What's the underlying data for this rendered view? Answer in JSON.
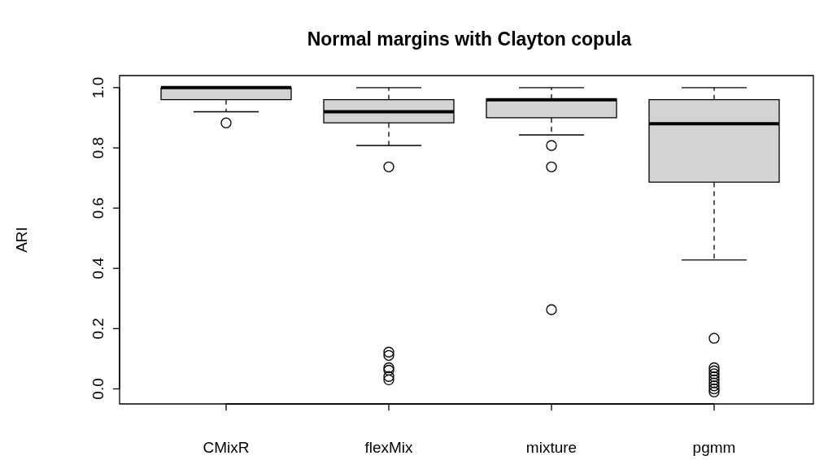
{
  "chart_data": {
    "type": "box",
    "title": "Normal margins with Clayton copula",
    "ylabel": "ARI",
    "categories": [
      "CMixR",
      "flexMix",
      "mixture",
      "pgmm"
    ],
    "color": "#d3d3d3",
    "boxes": [
      {
        "low": 0.92,
        "q1": 0.96,
        "median": 1.0,
        "q3": 1.0,
        "high": 1.0,
        "outliers": [
          0.883
        ]
      },
      {
        "low": 0.808,
        "q1": 0.883,
        "median": 0.92,
        "q3": 0.96,
        "high": 1.0,
        "outliers": [
          0.737,
          0.122,
          0.111,
          0.07,
          0.062,
          0.041,
          0.03
        ]
      },
      {
        "low": 0.843,
        "q1": 0.9,
        "median": 0.96,
        "q3": 0.962,
        "high": 1.0,
        "outliers": [
          0.808,
          0.737,
          0.263
        ]
      },
      {
        "low": 0.428,
        "q1": 0.686,
        "median": 0.88,
        "q3": 0.96,
        "high": 1.0,
        "outliers": [
          0.168,
          0.07,
          0.06,
          0.05,
          0.04,
          0.03,
          0.02,
          0.01,
          0,
          -0.01
        ]
      }
    ],
    "ylim": [
      -0.05,
      1.04
    ],
    "yticks": [
      {
        "value": 0,
        "label": "0.0"
      },
      {
        "value": 0.2,
        "label": "0.2"
      },
      {
        "value": 0.4,
        "label": "0.4"
      },
      {
        "value": 0.6,
        "label": "0.6"
      },
      {
        "value": 0.8,
        "label": "0.8"
      },
      {
        "value": 1,
        "label": "1.0"
      }
    ],
    "grid": false,
    "legend": false
  }
}
